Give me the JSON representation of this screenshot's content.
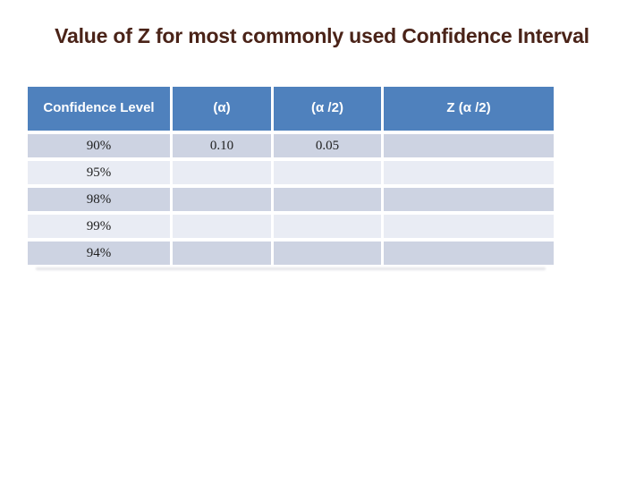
{
  "title": {
    "text": "Value of Z for most commonly used Confidence Interval",
    "color": "#4a2318"
  },
  "table": {
    "headers": [
      "Confidence Level",
      "(α)",
      "(α /2)",
      "Z (α /2)"
    ],
    "rows": [
      [
        "90%",
        "0.10",
        "0.05",
        ""
      ],
      [
        "95%",
        "",
        "",
        ""
      ],
      [
        "98%",
        "",
        "",
        ""
      ],
      [
        "99%",
        "",
        "",
        ""
      ],
      [
        "94%",
        "",
        "",
        ""
      ]
    ],
    "colors": {
      "header_bg": "#4f81bd",
      "header_text": "#ffffff",
      "band_dark": "#cdd3e2",
      "band_light": "#e9ecf4",
      "cell_text": "#1f1f1f"
    }
  }
}
